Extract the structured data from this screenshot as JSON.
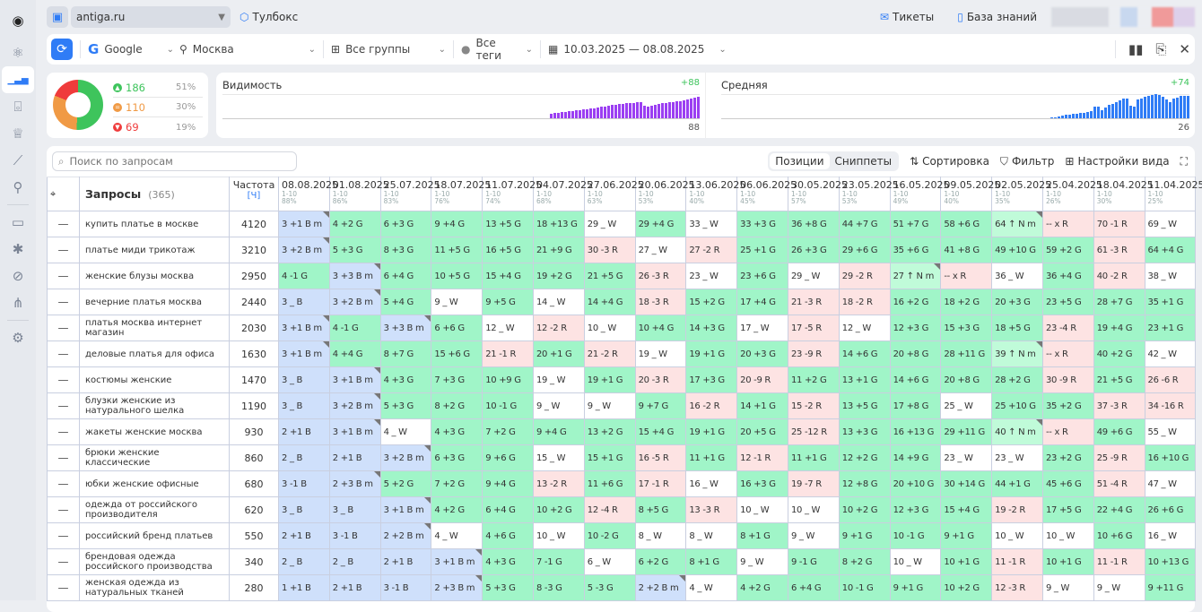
{
  "sidebar": {
    "icons": [
      "logo-icon",
      "atom-icon",
      "positions-icon",
      "scan-icon",
      "trophy-icon",
      "trend-icon",
      "pin-icon",
      "monitor-icon",
      "bug-icon",
      "satellite-icon",
      "sitemap-icon",
      "settings-icon"
    ]
  },
  "topbar": {
    "project": "antiga.ru",
    "toolbox": "Тулбокс",
    "tickets": "Тикеты",
    "kb": "База знаний"
  },
  "filters": {
    "engine": "Google",
    "region": "Москва",
    "groups": "Все группы",
    "tags": "Все теги",
    "dates": "10.03.2025 — 08.08.2025"
  },
  "summary": {
    "up": {
      "count": "186",
      "pct": "51%"
    },
    "same": {
      "count": "110",
      "pct": "30%"
    },
    "down": {
      "count": "69",
      "pct": "19%"
    },
    "colors": {
      "up": "#3ec45c",
      "same": "#f09a45",
      "down": "#ef3b3b"
    }
  },
  "visibility": {
    "title": "Видимость",
    "delta": "+88",
    "value": "88",
    "color": "#9b3ff2",
    "bars": [
      20,
      22,
      24,
      26,
      27,
      29,
      31,
      33,
      35,
      36,
      38,
      40,
      42,
      45,
      47,
      50,
      52,
      55,
      56,
      58,
      60,
      62,
      62,
      64,
      65,
      66,
      52,
      50,
      53,
      55,
      58,
      62,
      64,
      66,
      68,
      70,
      72,
      75,
      78,
      82,
      85,
      88
    ]
  },
  "average": {
    "title": "Средняя",
    "delta": "+74",
    "value": "26",
    "color": "#2f7cf6",
    "bars": [
      2,
      3,
      4,
      6,
      8,
      10,
      12,
      12,
      14,
      14,
      16,
      18,
      28,
      30,
      20,
      26,
      34,
      36,
      40,
      44,
      48,
      50,
      32,
      30,
      46,
      50,
      54,
      56,
      58,
      60,
      58,
      54,
      46,
      40,
      48,
      52,
      55,
      56,
      56
    ]
  },
  "table": {
    "search_placeholder": "Поиск по запросам",
    "tabs": [
      "Позиции",
      "Сниппеты"
    ],
    "sort": "Сортировка",
    "filter": "Фильтр",
    "view": "Настройки вида",
    "query_header": "Запросы",
    "query_count": "(365)",
    "freq_header": "Частота",
    "freq_unit": "[Ч]",
    "columns": [
      {
        "date": "08.08.2025",
        "range": "1-10",
        "pct": "88%"
      },
      {
        "date": "01.08.2025",
        "range": "1-10",
        "pct": "86%"
      },
      {
        "date": "25.07.2025",
        "range": "1-10",
        "pct": "83%"
      },
      {
        "date": "18.07.2025",
        "range": "1-10",
        "pct": "76%"
      },
      {
        "date": "11.07.2025",
        "range": "1-10",
        "pct": "74%"
      },
      {
        "date": "04.07.2025",
        "range": "1-10",
        "pct": "68%"
      },
      {
        "date": "27.06.2025",
        "range": "1-10",
        "pct": "63%"
      },
      {
        "date": "20.06.2025",
        "range": "1-10",
        "pct": "53%"
      },
      {
        "date": "13.06.2025",
        "range": "1-10",
        "pct": "40%"
      },
      {
        "date": "06.06.2025",
        "range": "1-10",
        "pct": "45%"
      },
      {
        "date": "30.05.2025",
        "range": "1-10",
        "pct": "57%"
      },
      {
        "date": "23.05.2025",
        "range": "1-10",
        "pct": "53%"
      },
      {
        "date": "16.05.2025",
        "range": "1-10",
        "pct": "49%"
      },
      {
        "date": "09.05.2025",
        "range": "1-10",
        "pct": "40%"
      },
      {
        "date": "02.05.2025",
        "range": "1-10",
        "pct": "35%"
      },
      {
        "date": "25.04.2025",
        "range": "1-10",
        "pct": "26%"
      },
      {
        "date": "18.04.2025",
        "range": "1-10",
        "pct": "30%"
      },
      {
        "date": "11.04.2025",
        "range": "1-10",
        "pct": "25%"
      }
    ],
    "rows": [
      {
        "q": "купить платье в москве",
        "f": "4120",
        "c": [
          "3 +1 B m",
          "4 +2 G",
          "6 +3 G",
          "9 +4 G",
          "13 +5 G",
          "18 +13 G",
          "29 _ W",
          "29 +4 G",
          "33 _ W",
          "33 +3 G",
          "36 +8 G",
          "44 +7 G",
          "51 +7 G",
          "58 +6 G",
          "64 ↑ N m",
          "-- x R",
          "70 -1 R",
          "69 _ W"
        ]
      },
      {
        "q": "платье миди трикотаж",
        "f": "3210",
        "c": [
          "3 +2 B m",
          "5 +3 G",
          "8 +3 G",
          "11 +5 G",
          "16 +5 G",
          "21 +9 G",
          "30 -3 R",
          "27 _ W",
          "27 -2 R",
          "25 +1 G",
          "26 +3 G",
          "29 +6 G",
          "35 +6 G",
          "41 +8 G",
          "49 +10 G",
          "59 +2 G",
          "61 -3 R",
          "64 +4 G"
        ]
      },
      {
        "q": "женские блузы москва",
        "f": "2950",
        "c": [
          "4 -1 G",
          "3 +3 B m",
          "6 +4 G",
          "10 +5 G",
          "15 +4 G",
          "19 +2 G",
          "21 +5 G",
          "26 -3 R",
          "23 _ W",
          "23 +6 G",
          "29 _ W",
          "29 -2 R",
          "27 ↑ N m",
          "-- x R",
          "36 _ W",
          "36 +4 G",
          "40 -2 R",
          "38 _ W"
        ]
      },
      {
        "q": "вечерние платья москва",
        "f": "2440",
        "c": [
          "3 _ B",
          "3 +2 B m",
          "5 +4 G",
          "9 _ W",
          "9 +5 G",
          "14 _ W",
          "14 +4 G",
          "18 -3 R",
          "15 +2 G",
          "17 +4 G",
          "21 -3 R",
          "18 -2 R",
          "16 +2 G",
          "18 +2 G",
          "20 +3 G",
          "23 +5 G",
          "28 +7 G",
          "35 +1 G"
        ]
      },
      {
        "q": "платья москва интернет магазин",
        "f": "2030",
        "c": [
          "3 +1 B m",
          "4 -1 G",
          "3 +3 B m",
          "6 +6 G",
          "12 _ W",
          "12 -2 R",
          "10 _ W",
          "10 +4 G",
          "14 +3 G",
          "17 _ W",
          "17 -5 R",
          "12 _ W",
          "12 +3 G",
          "15 +3 G",
          "18 +5 G",
          "23 -4 R",
          "19 +4 G",
          "23 +1 G"
        ]
      },
      {
        "q": "деловые платья для офиса",
        "f": "1630",
        "c": [
          "3 +1 B m",
          "4 +4 G",
          "8 +7 G",
          "15 +6 G",
          "21 -1 R",
          "20 +1 G",
          "21 -2 R",
          "19 _ W",
          "19 +1 G",
          "20 +3 G",
          "23 -9 R",
          "14 +6 G",
          "20 +8 G",
          "28 +11 G",
          "39 ↑ N m",
          "-- x R",
          "40 +2 G",
          "42 _ W"
        ]
      },
      {
        "q": "костюмы женские",
        "f": "1470",
        "c": [
          "3 _ B",
          "3 +1 B m",
          "4 +3 G",
          "7 +3 G",
          "10 +9 G",
          "19 _ W",
          "19 +1 G",
          "20 -3 R",
          "17 +3 G",
          "20 -9 R",
          "11 +2 G",
          "13 +1 G",
          "14 +6 G",
          "20 +8 G",
          "28 +2 G",
          "30 -9 R",
          "21 +5 G",
          "26 -6 R"
        ]
      },
      {
        "q": "блузки женские из натурального шелка",
        "f": "1190",
        "c": [
          "3 _ B",
          "3 +2 B m",
          "5 +3 G",
          "8 +2 G",
          "10 -1 G",
          "9 _ W",
          "9 _ W",
          "9 +7 G",
          "16 -2 R",
          "14 +1 G",
          "15 -2 R",
          "13 +5 G",
          "17 +8 G",
          "25 _ W",
          "25 +10 G",
          "35 +2 G",
          "37 -3 R",
          "34 -16 R"
        ]
      },
      {
        "q": "жакеты женские москва",
        "f": "930",
        "c": [
          "2 +1 B",
          "3 +1 B m",
          "4 _ W",
          "4 +3 G",
          "7 +2 G",
          "9 +4 G",
          "13 +2 G",
          "15 +4 G",
          "19 +1 G",
          "20 +5 G",
          "25 -12 R",
          "13 +3 G",
          "16 +13 G",
          "29 +11 G",
          "40 ↑ N m",
          "-- x R",
          "49 +6 G",
          "55 _ W"
        ]
      },
      {
        "q": "брюки женские классические",
        "f": "860",
        "c": [
          "2 _ B",
          "2 +1 B",
          "3 +2 B m",
          "6 +3 G",
          "9 +6 G",
          "15 _ W",
          "15 +1 G",
          "16 -5 R",
          "11 +1 G",
          "12 -1 R",
          "11 +1 G",
          "12 +2 G",
          "14 +9 G",
          "23 _ W",
          "23 _ W",
          "23 +2 G",
          "25 -9 R",
          "16 +10 G"
        ]
      },
      {
        "q": "юбки женские офисные",
        "f": "680",
        "c": [
          "3 -1 B",
          "2 +3 B m",
          "5 +2 G",
          "7 +2 G",
          "9 +4 G",
          "13 -2 R",
          "11 +6 G",
          "17 -1 R",
          "16 _ W",
          "16 +3 G",
          "19 -7 R",
          "12 +8 G",
          "20 +10 G",
          "30 +14 G",
          "44 +1 G",
          "45 +6 G",
          "51 -4 R",
          "47 _ W"
        ]
      },
      {
        "q": "одежда от российского производителя",
        "f": "620",
        "c": [
          "3 _ B",
          "3 _ B",
          "3 +1 B m",
          "4 +2 G",
          "6 +4 G",
          "10 +2 G",
          "12 -4 R",
          "8 +5 G",
          "13 -3 R",
          "10 _ W",
          "10 _ W",
          "10 +2 G",
          "12 +3 G",
          "15 +4 G",
          "19 -2 R",
          "17 +5 G",
          "22 +4 G",
          "26 +6 G"
        ]
      },
      {
        "q": "российский бренд платьев",
        "f": "550",
        "c": [
          "2 +1 B",
          "3 -1 B",
          "2 +2 B m",
          "4 _ W",
          "4 +6 G",
          "10 _ W",
          "10 -2 G",
          "8 _ W",
          "8 _ W",
          "8 +1 G",
          "9 _ W",
          "9 +1 G",
          "10 -1 G",
          "9 +1 G",
          "10 _ W",
          "10 _ W",
          "10 +6 G",
          "16 _ W"
        ]
      },
      {
        "q": "брендовая одежда российского производства",
        "f": "340",
        "c": [
          "2 _ B",
          "2 _ B",
          "2 +1 B",
          "3 +1 B m",
          "4 +3 G",
          "7 -1 G",
          "6 _ W",
          "6 +2 G",
          "8 +1 G",
          "9 _ W",
          "9 -1 G",
          "8 +2 G",
          "10 _ W",
          "10 +1 G",
          "11 -1 R",
          "10 +1 G",
          "11 -1 R",
          "10 +13 G"
        ]
      },
      {
        "q": "женская одежда из натуральных тканей",
        "f": "280",
        "c": [
          "1 +1 B",
          "2 +1 B",
          "3 -1 B",
          "2 +3 B m",
          "5 +3 G",
          "8 -3 G",
          "5 -3 G",
          "2 +2 B m",
          "4 _ W",
          "4 +2 G",
          "6 +4 G",
          "10 -1 G",
          "9 +1 G",
          "10 +2 G",
          "12 -3 R",
          "9 _ W",
          "9 _ W",
          "9 +11 G"
        ]
      }
    ]
  }
}
